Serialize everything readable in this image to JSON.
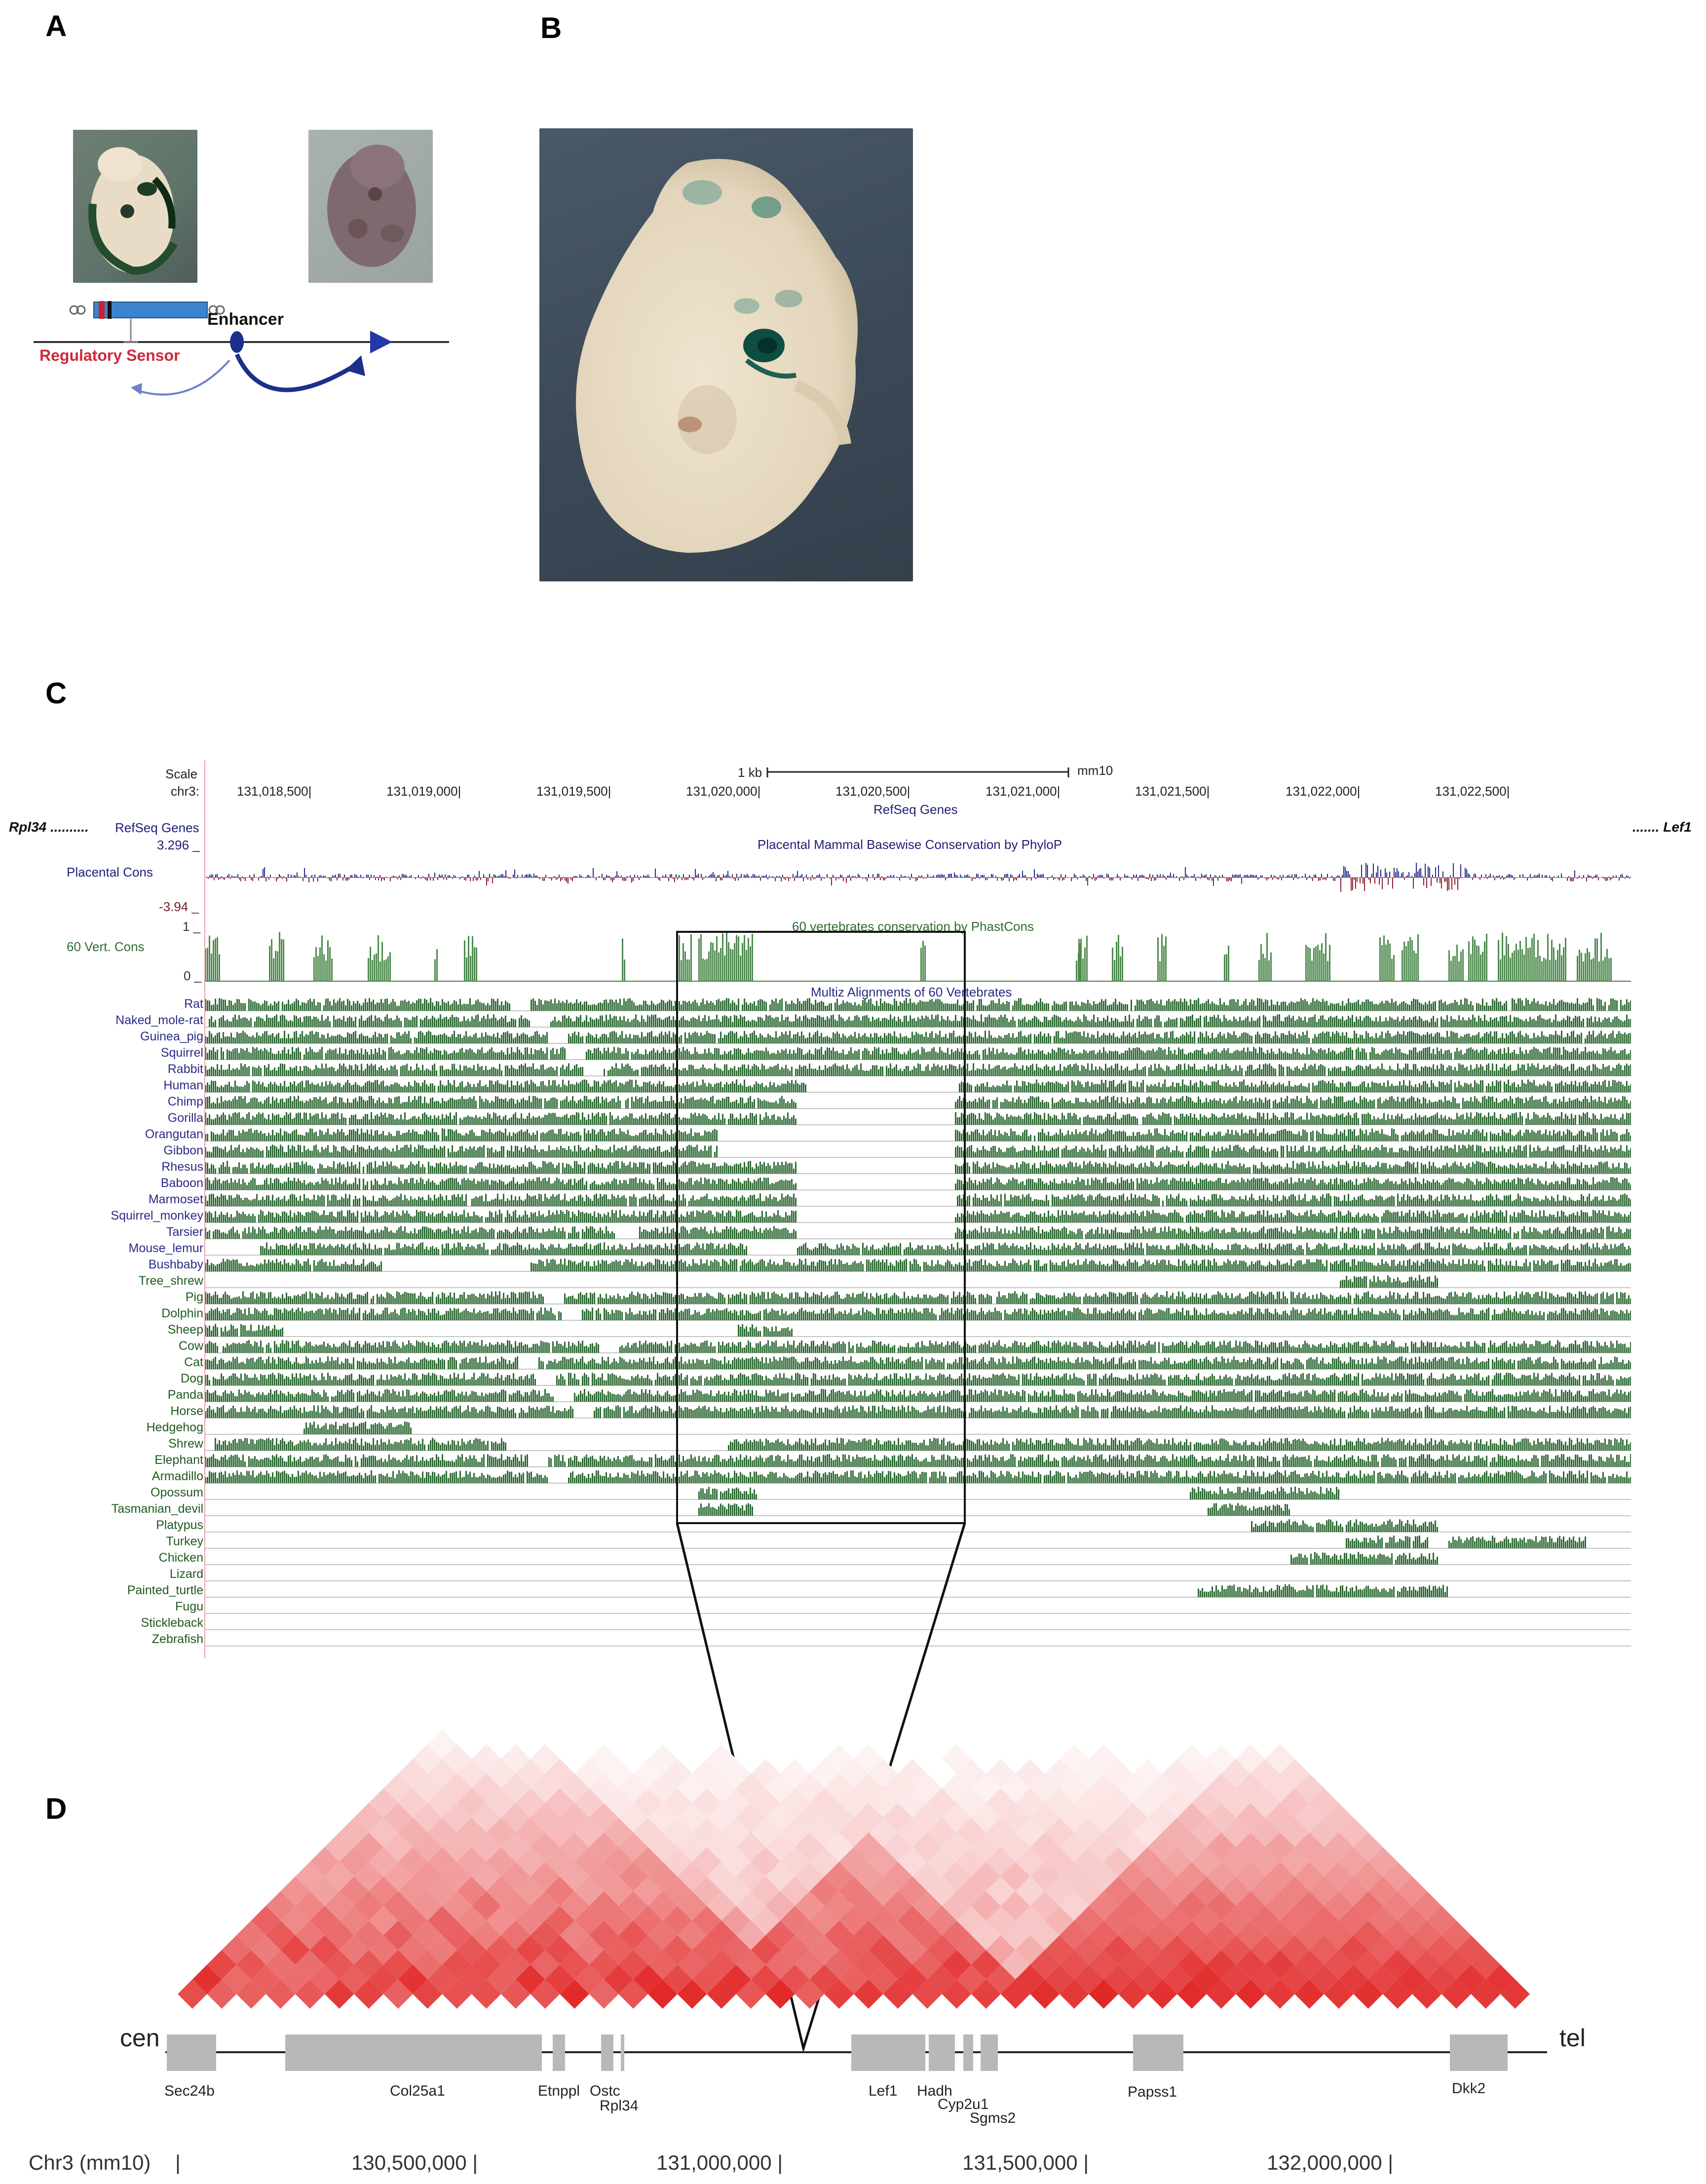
{
  "panels": {
    "a": "A",
    "b": "B",
    "c": "C",
    "d": "D"
  },
  "panel_a": {
    "enhancer_label": "Enhancer",
    "sensor_label": "Regulatory Sensor"
  },
  "panel_c": {
    "scale_label": "Scale",
    "chr_label": "chr3:",
    "scale_bar": "1 kb",
    "assembly": "mm10",
    "ticks": [
      "131,018,500",
      "131,019,000",
      "131,019,500",
      "131,020,000",
      "131,020,500",
      "131,021,000",
      "131,021,500",
      "131,022,000",
      "131,022,500"
    ],
    "refseq_title": "RefSeq Genes",
    "left_gene": "Rpl34 ..........",
    "left_track": "RefSeq Genes",
    "right_gene": "....... Lef1",
    "phylop_title": "Placental Mammal Basewise Conservation by PhyloP",
    "phylop_max": "3.296 _",
    "phylop_label": "Placental Cons",
    "phylop_min": "-3.94 _",
    "phast_title": "60 vertebrates conservation by PhastCons",
    "phast_max": "1 _",
    "phast_label": "60 Vert. Cons",
    "phast_min": "0 _",
    "multiz_title": "Multiz Alignments of 60 Vertebrates",
    "species": [
      "Rat",
      "Naked_mole-rat",
      "Guinea_pig",
      "Squirrel",
      "Rabbit",
      "Human",
      "Chimp",
      "Gorilla",
      "Orangutan",
      "Gibbon",
      "Rhesus",
      "Baboon",
      "Marmoset",
      "Squirrel_monkey",
      "Tarsier",
      "Mouse_lemur",
      "Bushbaby",
      "Tree_shrew",
      "Pig",
      "Dolphin",
      "Sheep",
      "Cow",
      "Cat",
      "Dog",
      "Panda",
      "Horse",
      "Hedgehog",
      "Shrew",
      "Elephant",
      "Armadillo",
      "Opossum",
      "Tasmanian_devil",
      "Platypus",
      "Turkey",
      "Chicken",
      "Lizard",
      "Painted_turtle",
      "Fugu",
      "Stickleback",
      "Zebrafish"
    ]
  },
  "panel_d": {
    "cen": "cen",
    "tel": "tel",
    "genes": [
      "Sec24b",
      "Col25a1",
      "Etnppl",
      "Ostc",
      "Rpl34",
      "Lef1",
      "Hadh",
      "Cyp2u1",
      "Sgms2",
      "Papss1",
      "Dkk2"
    ],
    "axis_label": "Chr3 (mm10)",
    "ticks": [
      "130,500,000",
      "131,000,000",
      "131,500,000",
      "132,000,000"
    ]
  },
  "colors": {
    "conservation_green": "#2f6b35",
    "phylop_blue": "#1f1f88",
    "heatmap_red": "#e02020",
    "gene_grey": "#b8b8b8"
  }
}
